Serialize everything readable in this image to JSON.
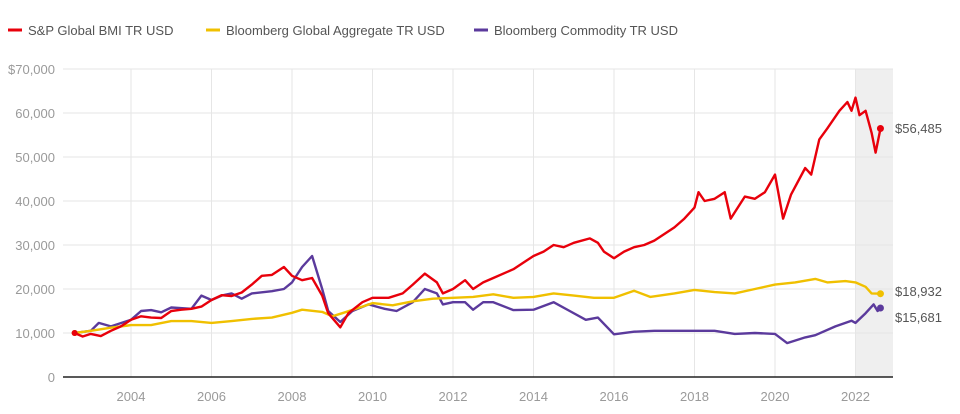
{
  "chart_data": {
    "type": "line",
    "title": "",
    "xlabel": "",
    "ylabel": "",
    "xlim": [
      2002.4,
      2022.92
    ],
    "ylim": [
      0,
      70000
    ],
    "grid": true,
    "legend_position": "top-left",
    "x_ticks": [
      2004,
      2006,
      2008,
      2010,
      2012,
      2014,
      2016,
      2018,
      2020,
      2022
    ],
    "x_tick_labels": [
      "2004",
      "2006",
      "2008",
      "2010",
      "2012",
      "2014",
      "2016",
      "2018",
      "2020",
      "2022"
    ],
    "y_ticks": [
      0,
      10000,
      20000,
      30000,
      40000,
      50000,
      60000,
      70000
    ],
    "y_tick_labels": [
      "0",
      "10,000",
      "20,000",
      "30,000",
      "40,000",
      "50,000",
      "60,000",
      "$70,000"
    ],
    "shaded_region": [
      2022.0,
      2022.92
    ],
    "shaded_color": "#efefef",
    "series": [
      {
        "name": "S&P Global BMI TR USD",
        "color": "#e8000b",
        "end_label": "$56,485",
        "points": [
          [
            2002.6,
            10000
          ],
          [
            2002.8,
            9200
          ],
          [
            2003.0,
            9800
          ],
          [
            2003.25,
            9300
          ],
          [
            2003.5,
            10500
          ],
          [
            2003.75,
            11500
          ],
          [
            2004.0,
            13000
          ],
          [
            2004.25,
            13800
          ],
          [
            2004.5,
            13500
          ],
          [
            2004.75,
            13400
          ],
          [
            2005.0,
            15000
          ],
          [
            2005.25,
            15300
          ],
          [
            2005.5,
            15500
          ],
          [
            2005.75,
            16000
          ],
          [
            2006.0,
            17500
          ],
          [
            2006.25,
            18600
          ],
          [
            2006.5,
            18400
          ],
          [
            2006.75,
            19200
          ],
          [
            2007.0,
            21000
          ],
          [
            2007.25,
            23000
          ],
          [
            2007.5,
            23200
          ],
          [
            2007.8,
            25000
          ],
          [
            2008.0,
            23000
          ],
          [
            2008.25,
            22000
          ],
          [
            2008.5,
            22500
          ],
          [
            2008.75,
            18500
          ],
          [
            2008.9,
            14500
          ],
          [
            2009.2,
            11300
          ],
          [
            2009.4,
            14500
          ],
          [
            2009.75,
            17000
          ],
          [
            2010.0,
            18000
          ],
          [
            2010.4,
            18000
          ],
          [
            2010.75,
            19000
          ],
          [
            2011.0,
            21000
          ],
          [
            2011.3,
            23500
          ],
          [
            2011.6,
            21500
          ],
          [
            2011.75,
            19000
          ],
          [
            2012.0,
            20000
          ],
          [
            2012.3,
            22000
          ],
          [
            2012.5,
            20000
          ],
          [
            2012.75,
            21500
          ],
          [
            2013.0,
            22500
          ],
          [
            2013.5,
            24500
          ],
          [
            2013.75,
            26000
          ],
          [
            2014.0,
            27500
          ],
          [
            2014.25,
            28500
          ],
          [
            2014.5,
            30000
          ],
          [
            2014.75,
            29500
          ],
          [
            2015.0,
            30500
          ],
          [
            2015.4,
            31500
          ],
          [
            2015.6,
            30500
          ],
          [
            2015.75,
            28500
          ],
          [
            2016.0,
            27000
          ],
          [
            2016.25,
            28500
          ],
          [
            2016.5,
            29500
          ],
          [
            2016.75,
            30000
          ],
          [
            2017.0,
            31000
          ],
          [
            2017.5,
            34000
          ],
          [
            2017.75,
            36000
          ],
          [
            2018.0,
            38500
          ],
          [
            2018.1,
            42000
          ],
          [
            2018.25,
            40000
          ],
          [
            2018.5,
            40500
          ],
          [
            2018.75,
            42000
          ],
          [
            2018.9,
            36000
          ],
          [
            2019.25,
            41000
          ],
          [
            2019.5,
            40500
          ],
          [
            2019.75,
            42000
          ],
          [
            2020.0,
            46000
          ],
          [
            2020.2,
            36000
          ],
          [
            2020.4,
            41500
          ],
          [
            2020.75,
            47500
          ],
          [
            2020.9,
            46000
          ],
          [
            2021.1,
            54000
          ],
          [
            2021.3,
            56500
          ],
          [
            2021.6,
            60500
          ],
          [
            2021.8,
            62500
          ],
          [
            2021.9,
            60500
          ],
          [
            2022.0,
            63500
          ],
          [
            2022.1,
            59500
          ],
          [
            2022.25,
            60500
          ],
          [
            2022.4,
            55500
          ],
          [
            2022.5,
            51000
          ],
          [
            2022.62,
            56485
          ]
        ]
      },
      {
        "name": "Bloomberg Global Aggregate TR USD",
        "color": "#f0c000",
        "end_label": "$18,932",
        "points": [
          [
            2002.6,
            10000
          ],
          [
            2003.0,
            10500
          ],
          [
            2003.5,
            11200
          ],
          [
            2004.0,
            11800
          ],
          [
            2004.5,
            11800
          ],
          [
            2005.0,
            12700
          ],
          [
            2005.5,
            12700
          ],
          [
            2006.0,
            12300
          ],
          [
            2006.5,
            12700
          ],
          [
            2007.0,
            13200
          ],
          [
            2007.5,
            13500
          ],
          [
            2008.0,
            14600
          ],
          [
            2008.25,
            15300
          ],
          [
            2008.75,
            14800
          ],
          [
            2009.0,
            13800
          ],
          [
            2009.25,
            14500
          ],
          [
            2009.75,
            16000
          ],
          [
            2010.0,
            16800
          ],
          [
            2010.5,
            16300
          ],
          [
            2011.0,
            17200
          ],
          [
            2011.5,
            17800
          ],
          [
            2012.0,
            18000
          ],
          [
            2012.5,
            18200
          ],
          [
            2013.0,
            18800
          ],
          [
            2013.5,
            18000
          ],
          [
            2014.0,
            18200
          ],
          [
            2014.5,
            19000
          ],
          [
            2015.0,
            18500
          ],
          [
            2015.5,
            18000
          ],
          [
            2016.0,
            18000
          ],
          [
            2016.5,
            19600
          ],
          [
            2016.9,
            18200
          ],
          [
            2017.5,
            19000
          ],
          [
            2018.0,
            19800
          ],
          [
            2018.5,
            19300
          ],
          [
            2019.0,
            19000
          ],
          [
            2019.5,
            20000
          ],
          [
            2020.0,
            21000
          ],
          [
            2020.5,
            21500
          ],
          [
            2021.0,
            22300
          ],
          [
            2021.3,
            21500
          ],
          [
            2021.75,
            21800
          ],
          [
            2022.0,
            21500
          ],
          [
            2022.25,
            20500
          ],
          [
            2022.4,
            19000
          ],
          [
            2022.62,
            18932
          ]
        ]
      },
      {
        "name": "Bloomberg Commodity TR USD",
        "color": "#5b3a9c",
        "end_label": "$15,681",
        "points": [
          [
            2002.6,
            10000
          ],
          [
            2003.0,
            10500
          ],
          [
            2003.2,
            12300
          ],
          [
            2003.5,
            11500
          ],
          [
            2004.0,
            13000
          ],
          [
            2004.25,
            15000
          ],
          [
            2004.5,
            15200
          ],
          [
            2004.75,
            14700
          ],
          [
            2005.0,
            15800
          ],
          [
            2005.5,
            15500
          ],
          [
            2005.75,
            18500
          ],
          [
            2006.0,
            17500
          ],
          [
            2006.25,
            18500
          ],
          [
            2006.5,
            19000
          ],
          [
            2006.75,
            17800
          ],
          [
            2007.0,
            19000
          ],
          [
            2007.5,
            19500
          ],
          [
            2007.8,
            20000
          ],
          [
            2008.0,
            21500
          ],
          [
            2008.25,
            25000
          ],
          [
            2008.5,
            27500
          ],
          [
            2008.75,
            20000
          ],
          [
            2008.9,
            15000
          ],
          [
            2009.2,
            12500
          ],
          [
            2009.5,
            15000
          ],
          [
            2009.9,
            16500
          ],
          [
            2010.3,
            15500
          ],
          [
            2010.6,
            15000
          ],
          [
            2011.0,
            17000
          ],
          [
            2011.3,
            20000
          ],
          [
            2011.6,
            19000
          ],
          [
            2011.75,
            16500
          ],
          [
            2012.0,
            17000
          ],
          [
            2012.3,
            17000
          ],
          [
            2012.5,
            15300
          ],
          [
            2012.75,
            17000
          ],
          [
            2013.0,
            17000
          ],
          [
            2013.5,
            15200
          ],
          [
            2014.0,
            15300
          ],
          [
            2014.5,
            17000
          ],
          [
            2014.9,
            15000
          ],
          [
            2015.3,
            13000
          ],
          [
            2015.6,
            13500
          ],
          [
            2016.0,
            9700
          ],
          [
            2016.5,
            10300
          ],
          [
            2017.0,
            10500
          ],
          [
            2018.0,
            10500
          ],
          [
            2018.5,
            10500
          ],
          [
            2019.0,
            9800
          ],
          [
            2019.5,
            10000
          ],
          [
            2020.0,
            9800
          ],
          [
            2020.3,
            7700
          ],
          [
            2020.75,
            9000
          ],
          [
            2021.0,
            9500
          ],
          [
            2021.5,
            11500
          ],
          [
            2021.9,
            12800
          ],
          [
            2022.0,
            12300
          ],
          [
            2022.25,
            14500
          ],
          [
            2022.45,
            16500
          ],
          [
            2022.55,
            15000
          ],
          [
            2022.62,
            15681
          ]
        ]
      }
    ]
  }
}
